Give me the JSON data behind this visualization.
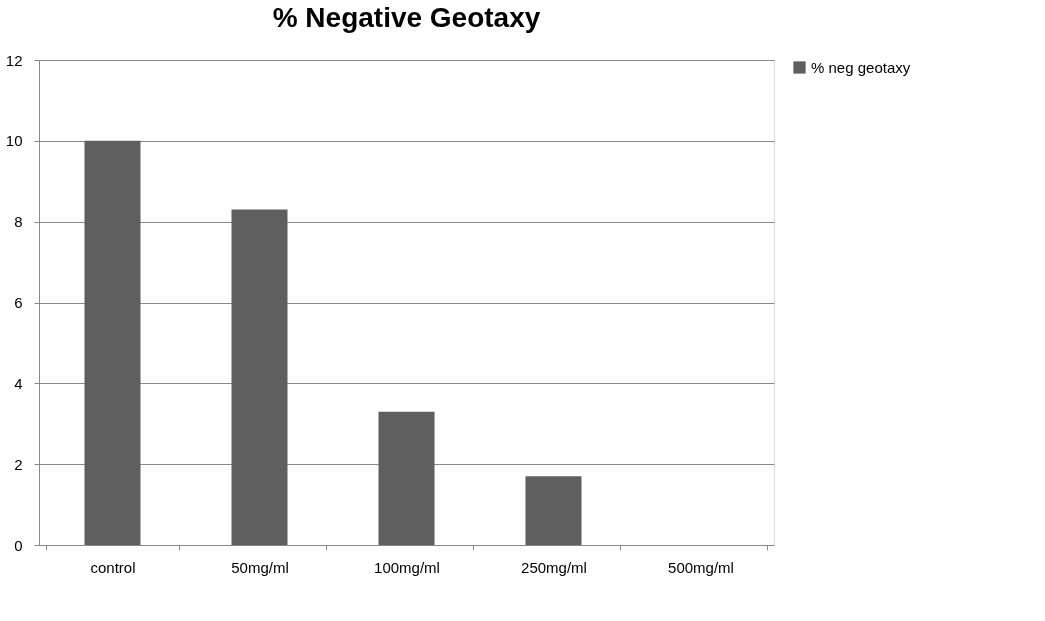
{
  "chart_data": {
    "type": "bar",
    "title": "% Negative Geotaxy",
    "categories": [
      "control",
      "50mg/ml",
      "100mg/ml",
      "250mg/ml",
      "500mg/ml"
    ],
    "series": [
      {
        "name": "% neg geotaxy",
        "color": "#5f5f5f",
        "values": [
          10,
          8.3,
          3.3,
          1.7,
          0
        ]
      }
    ],
    "ylim": [
      0,
      12
    ],
    "yticks": [
      0,
      2,
      4,
      6,
      8,
      10,
      12
    ],
    "grid": "y",
    "legend": "right"
  }
}
